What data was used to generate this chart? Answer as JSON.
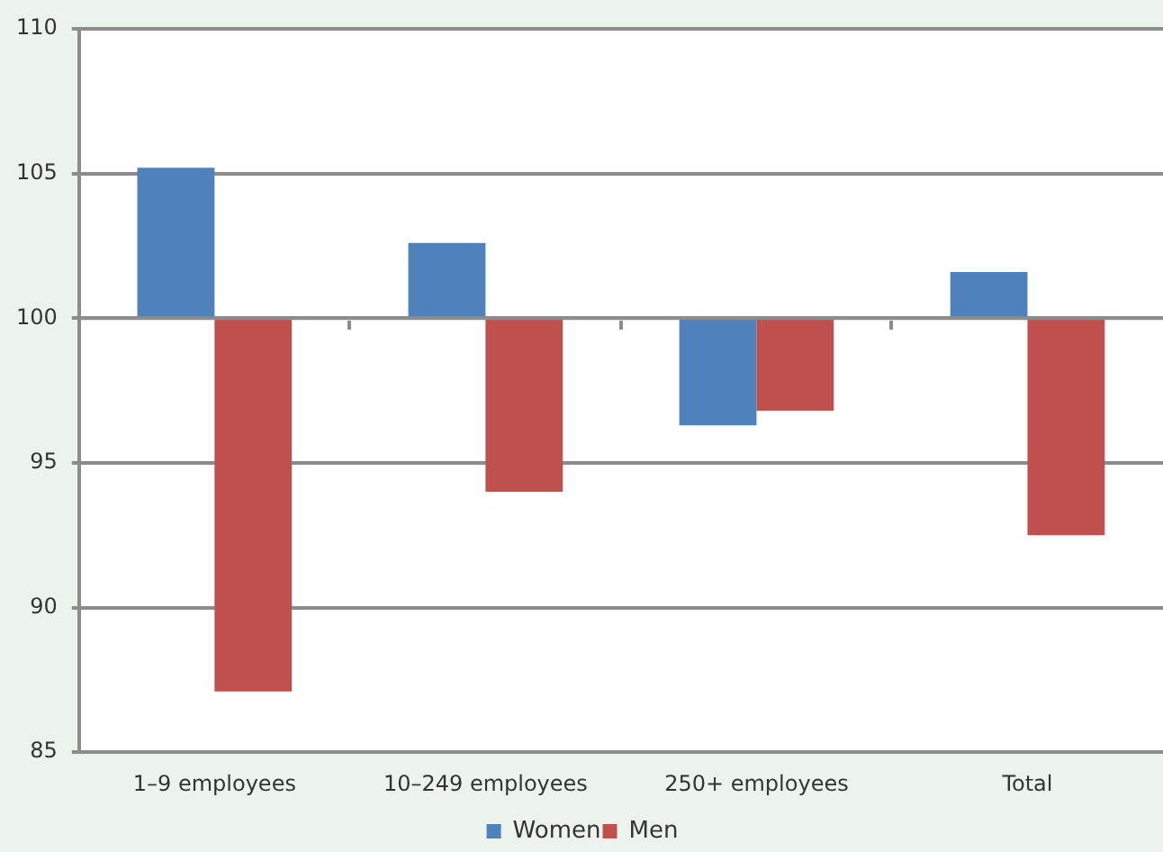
{
  "chart_data": {
    "type": "bar",
    "categories": [
      "1–9 employees",
      "10–249 employees",
      "250+ employees",
      "Total"
    ],
    "series": [
      {
        "name": "Women",
        "color": "#4f81bd",
        "base": [
          100,
          100,
          100,
          100
        ],
        "values": [
          5.2,
          2.6,
          -3.7,
          1.6
        ]
      },
      {
        "name": "Men",
        "color": "#c0504d",
        "base": [
          100,
          100,
          100,
          100
        ],
        "values": [
          -12.9,
          -6.0,
          -3.2,
          -7.5
        ]
      }
    ],
    "ylim": [
      85,
      110
    ],
    "yticks": [
      85,
      90,
      95,
      100,
      105,
      110
    ],
    "grid": "y",
    "legend": "bottom"
  }
}
